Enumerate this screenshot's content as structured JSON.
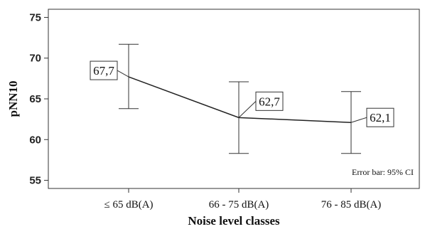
{
  "chart_data": {
    "type": "line",
    "categories": [
      "≤ 65 dB(A)",
      "66 - 75 dB(A)",
      "76 - 85 dB(A)"
    ],
    "series": [
      {
        "values": [
          67.7,
          62.7,
          62.1
        ],
        "data_labels": [
          "67,7",
          "62,7",
          "62,1"
        ],
        "ci_lower": [
          63.8,
          58.3,
          58.3
        ],
        "ci_upper": [
          71.7,
          67.1,
          65.9
        ]
      }
    ],
    "xlabel": "Noise level classes",
    "ylabel": "pNN10",
    "ylim": [
      54,
      76
    ],
    "yticks": [
      55,
      60,
      65,
      70,
      75
    ],
    "grid": false,
    "annotation": "Error bar: 95% CI"
  }
}
